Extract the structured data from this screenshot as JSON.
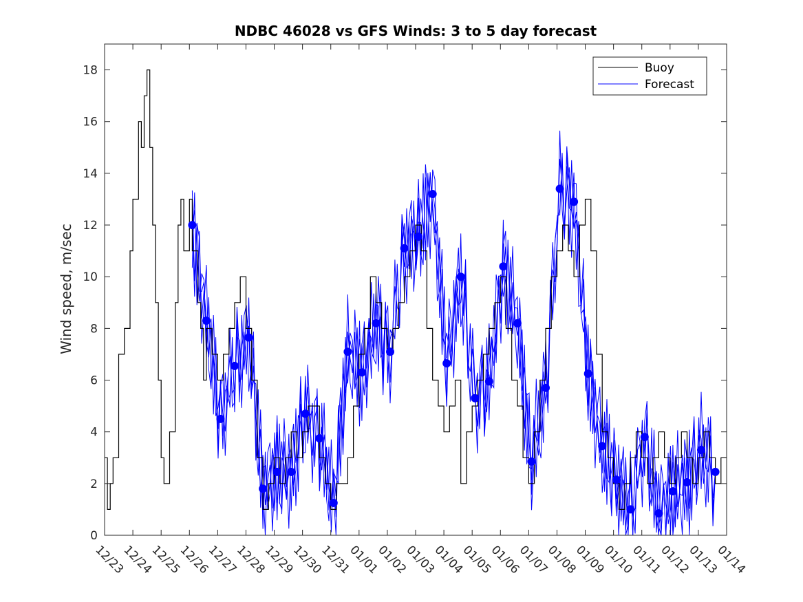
{
  "chart_data": {
    "type": "line",
    "title": "NDBC 46028 vs GFS Winds: 3 to 5 day forecast",
    "ylabel": "Wind speed, m/sec",
    "xlabel": "",
    "x_tick_labels": [
      "12/23",
      "12/24",
      "12/25",
      "12/26",
      "12/27",
      "12/28",
      "12/29",
      "12/30",
      "12/31",
      "01/01",
      "01/02",
      "01/03",
      "01/04",
      "01/05",
      "01/06",
      "01/07",
      "01/08",
      "01/09",
      "01/10",
      "01/11",
      "01/12",
      "01/13",
      "01/14"
    ],
    "xlim_days": [
      0,
      22
    ],
    "ylim": [
      0,
      19
    ],
    "y_ticks": [
      0,
      2,
      4,
      6,
      8,
      10,
      12,
      14,
      16,
      18
    ],
    "legend": {
      "placement": "top-right",
      "entries": [
        "Buoy",
        "Forecast"
      ]
    },
    "colors": {
      "buoy": "#000000",
      "forecast": "#0000ff"
    },
    "series": [
      {
        "name": "Buoy",
        "points": [
          [
            0.0,
            3
          ],
          [
            0.1,
            1
          ],
          [
            0.2,
            2
          ],
          [
            0.3,
            3
          ],
          [
            0.5,
            7
          ],
          [
            0.7,
            8
          ],
          [
            0.9,
            11
          ],
          [
            1.0,
            13
          ],
          [
            1.2,
            16
          ],
          [
            1.3,
            15
          ],
          [
            1.4,
            17
          ],
          [
            1.5,
            18
          ],
          [
            1.6,
            15
          ],
          [
            1.7,
            12
          ],
          [
            1.8,
            9
          ],
          [
            1.9,
            6
          ],
          [
            2.0,
            3
          ],
          [
            2.1,
            2
          ],
          [
            2.3,
            4
          ],
          [
            2.5,
            9
          ],
          [
            2.6,
            12
          ],
          [
            2.7,
            13
          ],
          [
            2.8,
            11
          ],
          [
            3.0,
            13
          ],
          [
            3.1,
            11
          ],
          [
            3.3,
            9
          ],
          [
            3.4,
            8
          ],
          [
            3.5,
            6
          ],
          [
            3.6,
            8
          ],
          [
            3.8,
            7
          ],
          [
            4.0,
            6
          ],
          [
            4.2,
            7
          ],
          [
            4.4,
            8
          ],
          [
            4.6,
            9
          ],
          [
            4.8,
            10
          ],
          [
            5.0,
            8
          ],
          [
            5.2,
            6
          ],
          [
            5.4,
            3
          ],
          [
            5.6,
            1
          ],
          [
            5.8,
            2
          ],
          [
            6.0,
            3
          ],
          [
            6.2,
            2
          ],
          [
            6.4,
            3
          ],
          [
            6.6,
            4
          ],
          [
            6.8,
            3
          ],
          [
            7.0,
            4
          ],
          [
            7.2,
            5
          ],
          [
            7.4,
            5
          ],
          [
            7.6,
            3
          ],
          [
            7.8,
            2
          ],
          [
            8.0,
            1
          ],
          [
            8.2,
            2
          ],
          [
            8.4,
            2
          ],
          [
            8.6,
            3
          ],
          [
            8.8,
            5
          ],
          [
            9.0,
            7
          ],
          [
            9.2,
            8
          ],
          [
            9.4,
            10
          ],
          [
            9.6,
            9
          ],
          [
            9.8,
            8
          ],
          [
            10.0,
            7
          ],
          [
            10.2,
            8
          ],
          [
            10.4,
            9
          ],
          [
            10.6,
            10
          ],
          [
            10.8,
            11
          ],
          [
            11.0,
            12
          ],
          [
            11.2,
            11
          ],
          [
            11.4,
            8
          ],
          [
            11.6,
            6
          ],
          [
            11.8,
            5
          ],
          [
            12.0,
            4
          ],
          [
            12.2,
            5
          ],
          [
            12.4,
            6
          ],
          [
            12.6,
            2
          ],
          [
            12.8,
            4
          ],
          [
            13.0,
            5
          ],
          [
            13.2,
            6
          ],
          [
            13.4,
            7
          ],
          [
            13.6,
            8
          ],
          [
            13.8,
            9
          ],
          [
            14.0,
            10
          ],
          [
            14.2,
            8
          ],
          [
            14.4,
            6
          ],
          [
            14.6,
            5
          ],
          [
            14.8,
            3
          ],
          [
            15.0,
            2
          ],
          [
            15.2,
            4
          ],
          [
            15.4,
            6
          ],
          [
            15.6,
            8
          ],
          [
            15.8,
            10
          ],
          [
            16.0,
            11
          ],
          [
            16.2,
            12
          ],
          [
            16.4,
            11
          ],
          [
            16.6,
            10
          ],
          [
            16.8,
            12
          ],
          [
            17.0,
            13
          ],
          [
            17.2,
            11
          ],
          [
            17.4,
            7
          ],
          [
            17.6,
            4
          ],
          [
            17.8,
            3
          ],
          [
            18.0,
            2
          ],
          [
            18.2,
            1
          ],
          [
            18.4,
            2
          ],
          [
            18.6,
            3
          ],
          [
            18.8,
            4
          ],
          [
            19.0,
            3
          ],
          [
            19.2,
            2
          ],
          [
            19.4,
            3
          ],
          [
            19.6,
            4
          ],
          [
            19.8,
            3
          ],
          [
            20.0,
            2
          ],
          [
            20.2,
            3
          ],
          [
            20.4,
            4
          ],
          [
            20.6,
            3
          ],
          [
            20.8,
            2
          ],
          [
            21.0,
            3
          ],
          [
            21.2,
            4
          ],
          [
            21.4,
            3
          ],
          [
            21.6,
            2
          ],
          [
            21.8,
            3
          ],
          [
            22.0,
            3
          ]
        ]
      },
      {
        "name": "Forecast",
        "points": [
          [
            3.1,
            12
          ],
          [
            3.6,
            8.3
          ],
          [
            4.1,
            4.5
          ],
          [
            4.6,
            6.55
          ],
          [
            5.1,
            7.65
          ],
          [
            5.6,
            1.8
          ],
          [
            6.1,
            2.45
          ],
          [
            6.6,
            2.45
          ],
          [
            7.1,
            4.7
          ],
          [
            7.6,
            3.75
          ],
          [
            8.1,
            1.25
          ],
          [
            8.6,
            7.1
          ],
          [
            9.1,
            6.3
          ],
          [
            9.6,
            8.2
          ],
          [
            10.1,
            7.1
          ],
          [
            10.6,
            11.1
          ],
          [
            11.1,
            11.55
          ],
          [
            11.6,
            13.2
          ],
          [
            12.1,
            6.65
          ],
          [
            12.6,
            10
          ],
          [
            13.1,
            5.3
          ],
          [
            13.6,
            5.95
          ],
          [
            14.1,
            10.4
          ],
          [
            14.6,
            8.2
          ],
          [
            15.1,
            2.85
          ],
          [
            15.6,
            5.7
          ],
          [
            16.1,
            13.4
          ],
          [
            16.6,
            12.9
          ],
          [
            17.1,
            6.25
          ],
          [
            17.6,
            3.45
          ],
          [
            18.1,
            2.15
          ],
          [
            18.6,
            1.0
          ],
          [
            19.1,
            3.8
          ],
          [
            19.6,
            0.85
          ],
          [
            20.1,
            1.7
          ],
          [
            20.6,
            2.05
          ],
          [
            21.1,
            3.3
          ],
          [
            21.6,
            2.45
          ]
        ]
      }
    ]
  }
}
